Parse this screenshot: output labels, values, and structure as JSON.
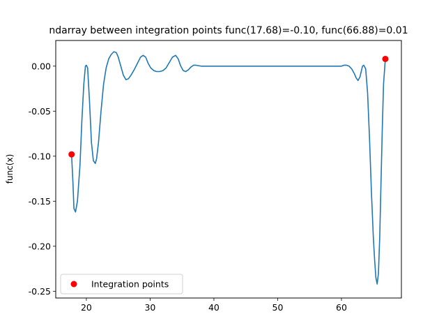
{
  "chart_data": {
    "type": "line",
    "title": "ndarray between integration points func(17.68)=-0.10, func(66.88)=0.01",
    "xlabel": "",
    "ylabel": "func(x)",
    "xlim": [
      15.2,
      69.4
    ],
    "ylim": [
      -0.2575,
      0.0285
    ],
    "x_ticks": [
      20,
      30,
      40,
      50,
      60
    ],
    "y_ticks": [
      0.0,
      -0.05,
      -0.1,
      -0.15,
      -0.2,
      -0.25
    ],
    "grid": false,
    "legend_position": "lower-left",
    "series": [
      {
        "kind": "line",
        "color": "#1f77b4",
        "x": [
          17.68,
          17.9,
          18.05,
          18.3,
          18.6,
          19.0,
          19.3,
          19.6,
          19.85,
          20.0,
          20.2,
          20.5,
          20.8,
          21.1,
          21.4,
          21.6,
          21.9,
          22.3,
          22.7,
          23.1,
          23.5,
          23.9,
          24.3,
          24.7,
          25.0,
          25.4,
          25.8,
          26.2,
          26.6,
          27.0,
          27.5,
          28.0,
          28.5,
          28.9,
          29.3,
          29.7,
          30.1,
          30.6,
          31.0,
          31.5,
          32.0,
          32.5,
          33.0,
          33.5,
          34.0,
          34.4,
          34.8,
          35.2,
          35.6,
          36.0,
          36.4,
          36.8,
          37.2,
          37.6,
          38.0,
          38.5,
          39.0,
          40.0,
          45.0,
          50.0,
          55.0,
          59.0,
          59.5,
          60.0,
          60.4,
          60.8,
          61.2,
          61.6,
          62.0,
          62.3,
          62.6,
          62.9,
          63.1,
          63.3,
          63.5,
          63.8,
          64.1,
          64.4,
          64.7,
          65.0,
          65.2,
          65.4,
          65.6,
          65.8,
          66.0,
          66.2,
          66.4,
          66.6,
          66.88
        ],
        "y": [
          -0.098,
          -0.13,
          -0.158,
          -0.162,
          -0.15,
          -0.11,
          -0.06,
          -0.02,
          0.0,
          0.001,
          -0.002,
          -0.04,
          -0.085,
          -0.105,
          -0.108,
          -0.103,
          -0.085,
          -0.05,
          -0.02,
          -0.002,
          0.008,
          0.013,
          0.016,
          0.015,
          0.01,
          0.0,
          -0.01,
          -0.015,
          -0.014,
          -0.01,
          -0.004,
          0.003,
          0.01,
          0.012,
          0.01,
          0.003,
          -0.002,
          -0.005,
          -0.006,
          -0.006,
          -0.005,
          -0.002,
          0.004,
          0.01,
          0.012,
          0.008,
          0.0,
          -0.005,
          -0.006,
          -0.004,
          -0.001,
          0.001,
          0.001,
          0.0005,
          0.0,
          0.0,
          0.0,
          0.0,
          0.0,
          0.0,
          0.0,
          0.0,
          0.0,
          0.0,
          0.001,
          0.001,
          0.0,
          -0.003,
          -0.008,
          -0.013,
          -0.016,
          -0.012,
          -0.006,
          0.0,
          0.001,
          -0.003,
          -0.03,
          -0.08,
          -0.14,
          -0.19,
          -0.215,
          -0.235,
          -0.242,
          -0.23,
          -0.19,
          -0.13,
          -0.07,
          -0.02,
          0.008
        ]
      }
    ],
    "points": {
      "name": "Integration points",
      "color": "#ff0000",
      "x": [
        17.68,
        66.88
      ],
      "y": [
        -0.098,
        0.008
      ]
    }
  }
}
